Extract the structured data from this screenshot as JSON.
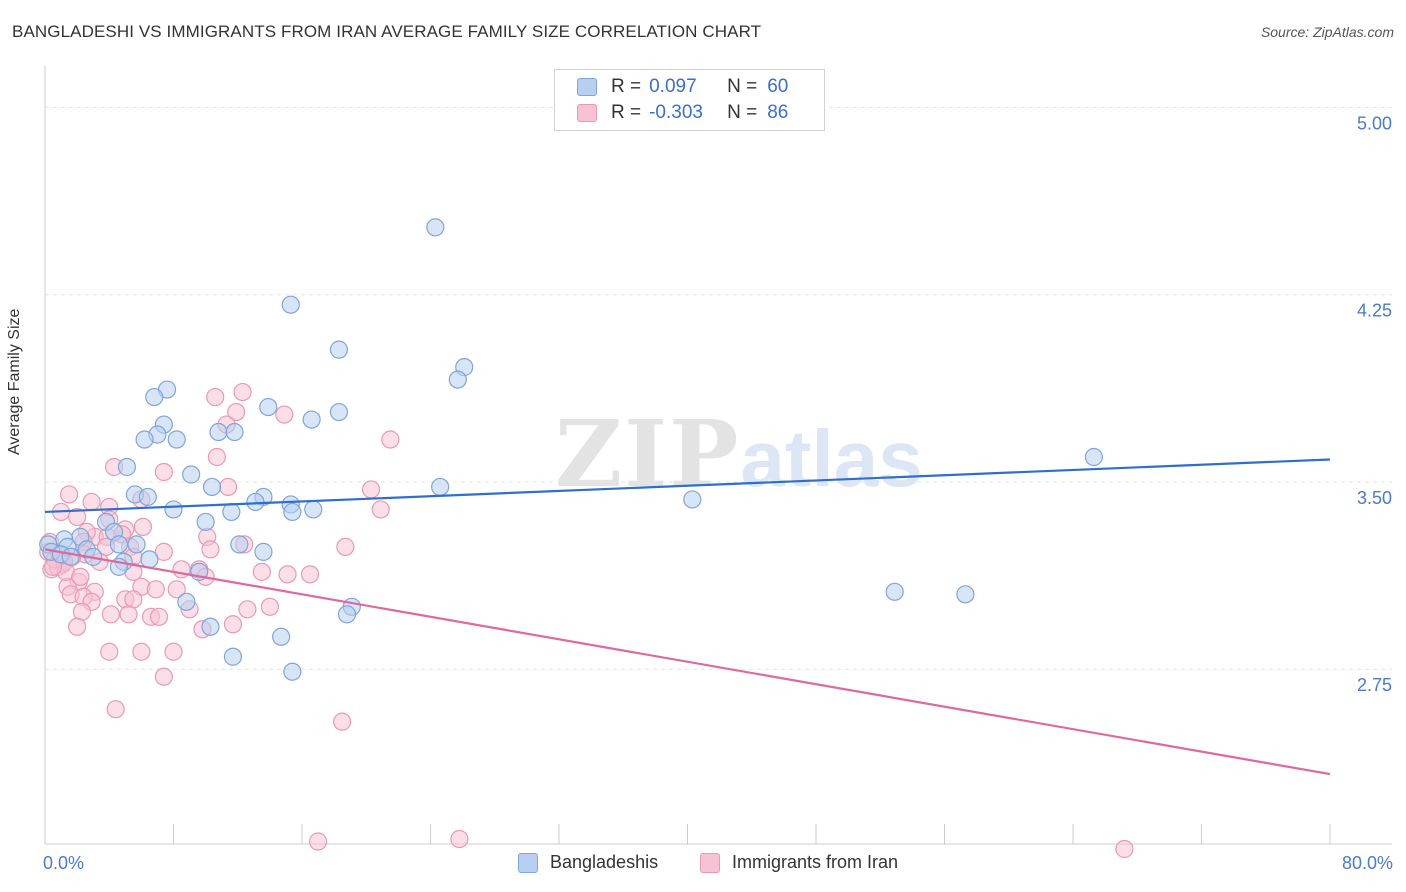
{
  "title": "BANGLADESHI VS IMMIGRANTS FROM IRAN AVERAGE FAMILY SIZE CORRELATION CHART",
  "source": "Source: ZipAtlas.com",
  "watermark": {
    "zip": "ZIP",
    "atlas": "atlas"
  },
  "legend": {
    "r_label": "R =",
    "n_label": "N =",
    "rows": [
      {
        "r": "0.097",
        "n": "60"
      },
      {
        "r": "-0.303",
        "n": "86"
      }
    ]
  },
  "colors": {
    "blue_fill": "#b7d0f1",
    "blue_stroke": "#7fa5d9",
    "blue_line": "#2e6fcc",
    "pink_fill": "#f7c2d3",
    "pink_stroke": "#e999b4",
    "pink_line": "#e0689a",
    "tick_text": "#4b7bc9",
    "grid": "#e4e4e4"
  },
  "chart_data": {
    "type": "scatter",
    "title": "BANGLADESHI VS IMMIGRANTS FROM IRAN AVERAGE FAMILY SIZE CORRELATION CHART",
    "xlabel": "",
    "ylabel": "Average Family Size",
    "xlim": [
      0,
      80
    ],
    "ylim": [
      2.05,
      5.15
    ],
    "x_tick_labels": [
      "0.0%",
      "80.0%"
    ],
    "y_ticks": [
      2.75,
      3.5,
      4.25,
      5.0
    ],
    "y_tick_labels": [
      "2.75",
      "3.50",
      "4.25",
      "5.00"
    ],
    "grid": true,
    "legend_position": "bottom",
    "series": [
      {
        "name": "Bangladeshis",
        "r": 0.097,
        "n": 60,
        "trend": [
          [
            0,
            3.38
          ],
          [
            80,
            3.59
          ]
        ],
        "points": [
          [
            24.3,
            4.52
          ],
          [
            15.3,
            4.21
          ],
          [
            18.3,
            4.03
          ],
          [
            26.1,
            3.96
          ],
          [
            25.7,
            3.91
          ],
          [
            7.6,
            3.87
          ],
          [
            6.8,
            3.84
          ],
          [
            13.9,
            3.8
          ],
          [
            18.3,
            3.78
          ],
          [
            16.6,
            3.75
          ],
          [
            7.4,
            3.73
          ],
          [
            10.8,
            3.7
          ],
          [
            7.0,
            3.69
          ],
          [
            11.8,
            3.7
          ],
          [
            6.2,
            3.67
          ],
          [
            8.2,
            3.67
          ],
          [
            65.3,
            3.6
          ],
          [
            5.1,
            3.56
          ],
          [
            9.1,
            3.53
          ],
          [
            10.4,
            3.48
          ],
          [
            24.6,
            3.48
          ],
          [
            5.6,
            3.45
          ],
          [
            6.4,
            3.44
          ],
          [
            13.6,
            3.44
          ],
          [
            13.1,
            3.42
          ],
          [
            40.3,
            3.43
          ],
          [
            15.3,
            3.41
          ],
          [
            8.0,
            3.39
          ],
          [
            16.7,
            3.39
          ],
          [
            15.4,
            3.38
          ],
          [
            11.6,
            3.38
          ],
          [
            10.0,
            3.34
          ],
          [
            3.8,
            3.34
          ],
          [
            4.3,
            3.3
          ],
          [
            2.2,
            3.28
          ],
          [
            1.2,
            3.27
          ],
          [
            0.2,
            3.25
          ],
          [
            1.4,
            3.24
          ],
          [
            4.6,
            3.25
          ],
          [
            12.1,
            3.25
          ],
          [
            5.7,
            3.25
          ],
          [
            2.6,
            3.23
          ],
          [
            13.6,
            3.22
          ],
          [
            3.0,
            3.2
          ],
          [
            6.5,
            3.19
          ],
          [
            4.9,
            3.18
          ],
          [
            4.6,
            3.16
          ],
          [
            9.6,
            3.14
          ],
          [
            52.9,
            3.06
          ],
          [
            57.3,
            3.05
          ],
          [
            8.8,
            3.02
          ],
          [
            19.1,
            3.0
          ],
          [
            18.8,
            2.97
          ],
          [
            10.3,
            2.92
          ],
          [
            14.7,
            2.88
          ],
          [
            11.7,
            2.8
          ],
          [
            15.4,
            2.74
          ],
          [
            0.4,
            3.22
          ],
          [
            1.0,
            3.21
          ],
          [
            1.6,
            3.2
          ]
        ]
      },
      {
        "name": "Immigrants from Iran",
        "r": -0.303,
        "n": 86,
        "trend": [
          [
            0,
            3.23
          ],
          [
            80,
            2.33
          ]
        ],
        "points": [
          [
            12.3,
            3.86
          ],
          [
            10.6,
            3.84
          ],
          [
            11.9,
            3.78
          ],
          [
            14.9,
            3.77
          ],
          [
            11.3,
            3.73
          ],
          [
            21.5,
            3.67
          ],
          [
            10.7,
            3.6
          ],
          [
            4.3,
            3.56
          ],
          [
            7.4,
            3.54
          ],
          [
            11.4,
            3.48
          ],
          [
            20.3,
            3.47
          ],
          [
            1.5,
            3.45
          ],
          [
            2.9,
            3.42
          ],
          [
            6.0,
            3.43
          ],
          [
            4.0,
            3.4
          ],
          [
            20.9,
            3.39
          ],
          [
            1.0,
            3.38
          ],
          [
            2.0,
            3.36
          ],
          [
            4.0,
            3.35
          ],
          [
            6.1,
            3.32
          ],
          [
            5.0,
            3.31
          ],
          [
            4.8,
            3.29
          ],
          [
            3.1,
            3.28
          ],
          [
            3.9,
            3.28
          ],
          [
            2.6,
            3.3
          ],
          [
            2.4,
            3.26
          ],
          [
            10.1,
            3.28
          ],
          [
            12.4,
            3.25
          ],
          [
            3.8,
            3.24
          ],
          [
            5.3,
            3.24
          ],
          [
            10.3,
            3.23
          ],
          [
            18.7,
            3.24
          ],
          [
            7.4,
            3.22
          ],
          [
            2.5,
            3.21
          ],
          [
            1.7,
            3.2
          ],
          [
            5.5,
            3.2
          ],
          [
            3.4,
            3.18
          ],
          [
            1.1,
            3.17
          ],
          [
            0.4,
            3.15
          ],
          [
            0.8,
            3.16
          ],
          [
            8.5,
            3.15
          ],
          [
            9.6,
            3.15
          ],
          [
            13.5,
            3.14
          ],
          [
            5.5,
            3.14
          ],
          [
            15.1,
            3.13
          ],
          [
            16.5,
            3.13
          ],
          [
            10.0,
            3.12
          ],
          [
            2.1,
            3.1
          ],
          [
            1.4,
            3.08
          ],
          [
            6.0,
            3.08
          ],
          [
            6.9,
            3.07
          ],
          [
            8.2,
            3.07
          ],
          [
            3.1,
            3.06
          ],
          [
            1.6,
            3.05
          ],
          [
            2.4,
            3.04
          ],
          [
            5.0,
            3.03
          ],
          [
            5.5,
            3.03
          ],
          [
            2.9,
            3.02
          ],
          [
            12.6,
            2.99
          ],
          [
            4.1,
            2.97
          ],
          [
            2.3,
            2.98
          ],
          [
            5.2,
            2.97
          ],
          [
            6.6,
            2.96
          ],
          [
            7.1,
            2.96
          ],
          [
            11.7,
            2.93
          ],
          [
            2.0,
            2.92
          ],
          [
            9.8,
            2.91
          ],
          [
            4.0,
            2.82
          ],
          [
            8.0,
            2.82
          ],
          [
            6.0,
            2.82
          ],
          [
            7.4,
            2.72
          ],
          [
            4.4,
            2.59
          ],
          [
            18.5,
            2.54
          ],
          [
            17.0,
            2.06
          ],
          [
            25.8,
            2.07
          ],
          [
            67.2,
            2.03
          ],
          [
            0.2,
            3.22
          ],
          [
            0.6,
            3.19
          ],
          [
            1.2,
            3.18
          ],
          [
            0.3,
            3.26
          ],
          [
            0.9,
            3.21
          ],
          [
            1.3,
            3.14
          ],
          [
            0.5,
            3.16
          ],
          [
            2.2,
            3.12
          ],
          [
            14.0,
            3.0
          ],
          [
            9.0,
            2.99
          ]
        ]
      }
    ]
  }
}
